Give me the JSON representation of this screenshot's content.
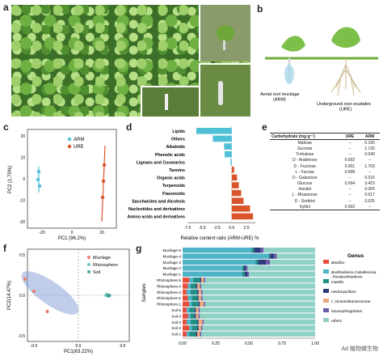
{
  "panels": {
    "a": "a",
    "b": "b",
    "c": "c",
    "d": "d",
    "e": "e",
    "f": "f",
    "g": "g"
  },
  "b_labels": {
    "arm": "Aerial root mucilage\n(ARM)",
    "ure": "Underground root exudates\n(URE)"
  },
  "c": {
    "legend": [
      {
        "name": "ARM",
        "color": "#4fc0d6"
      },
      {
        "name": "URE",
        "color": "#d9532b"
      }
    ],
    "xlabel": "PC1 (96.2%)",
    "ylabel": "PC2 (1.70%)",
    "xticks": [
      "-20",
      "0",
      "20"
    ],
    "yticks": [
      "20",
      "10",
      "0",
      "-10",
      "-20"
    ]
  },
  "chart_data": [
    {
      "type": "bar",
      "title": "",
      "categories": [
        "Lipids",
        "Others",
        "Alkaloids",
        "Phenolic acids",
        "Lignans and Coumarins",
        "Tannins",
        "Organic acids",
        "Terpenoids",
        "Flavonoids",
        "Saccharides and Alcohols",
        "Nucleotides and derivatives",
        "Amino acids and derivatives"
      ],
      "values": [
        -6.0,
        -3.2,
        -1.3,
        -1.2,
        -0.2,
        0.4,
        0.9,
        1.2,
        1.6,
        2.0,
        3.1,
        3.6
      ],
      "xlabel": "Relative content ratio (ARM-URE) %",
      "xticks": [
        "-7.5",
        "-5.0",
        "-2.5",
        "0.0",
        "2.5"
      ],
      "xlim": [
        -7.5,
        4.0
      ],
      "colors": {
        "negative": "#4fc0d6",
        "positive": "#d9532b"
      }
    },
    {
      "type": "table",
      "title": "",
      "headers": [
        "Carbohydrate (mg·g⁻¹)",
        "URE",
        "ARM"
      ],
      "rows": [
        [
          "Maltose",
          "--",
          "0.155"
        ],
        [
          "Sucrose",
          "--",
          "1.135"
        ],
        [
          "Trehalose",
          "--",
          "0.040"
        ],
        [
          "D - Arabinose",
          "0.002",
          "--"
        ],
        [
          "D - Fructose",
          "0.001",
          "1.763"
        ],
        [
          "L - Fucose",
          "0.008",
          "--"
        ],
        [
          "D - Galactose",
          "--",
          "0.016"
        ],
        [
          "Glucose",
          "0.004",
          "3.423"
        ],
        [
          "Inositol",
          "--",
          "0.055"
        ],
        [
          "L - Rhamnose",
          "--",
          "0.017"
        ],
        [
          "D - Sorbitol",
          "--",
          "0.025"
        ],
        [
          "Xylitol",
          "0.002",
          "--"
        ]
      ]
    },
    {
      "type": "scatter",
      "title": "",
      "series": [
        {
          "name": "Mucilage",
          "color": "#f07a6a",
          "x": [
            -0.6,
            -0.5,
            -0.35
          ],
          "y": [
            0.2,
            0.05,
            -0.2
          ]
        },
        {
          "name": "Rhizosphere",
          "color": "#77c6c7",
          "x": [
            0.31,
            0.32,
            0.33
          ],
          "y": [
            0.0,
            0.01,
            0.0
          ]
        },
        {
          "name": "Soil",
          "color": "#4aa39a",
          "x": [
            0.33,
            0.34,
            0.35
          ],
          "y": [
            0.0,
            -0.01,
            0.0
          ]
        }
      ],
      "xlabel": "PC1(63.22%)",
      "ylabel": "PC2(14.47%)",
      "xticks": [
        "-0.5",
        "0.0",
        "0.5"
      ],
      "yticks": [
        "0.5",
        "0.0",
        "-0.5"
      ]
    },
    {
      "type": "bar",
      "title": "",
      "categories": [
        "Mucilage-5",
        "Mucilage-4",
        "Mucilage-3",
        "Mucilage-2",
        "Mucilage-1",
        "Rhizosphere-5",
        "Rhizosphere-4",
        "Rhizosphere-3",
        "Rhizosphere-2",
        "Rhizosphere-1",
        "Soil-5",
        "Soil-4",
        "Soil-3",
        "Soil-2",
        "Soil-1"
      ],
      "legend_title": "Genus",
      "series": [
        {
          "name": "Bacillus",
          "color": "#e84d3c",
          "values": [
            0.0,
            0.0,
            0.0,
            0.0,
            0.0,
            0.05,
            0.04,
            0.03,
            0.04,
            0.05,
            0.03,
            0.04,
            0.03,
            0.05,
            0.03
          ]
        },
        {
          "name": "Burkholderia-Caballeronia\n-Paraburkholderia",
          "color": "#4fb3c8",
          "values": [
            0.52,
            0.65,
            0.55,
            0.45,
            0.45,
            0.03,
            0.02,
            0.03,
            0.03,
            0.02,
            0.02,
            0.02,
            0.03,
            0.02,
            0.02
          ]
        },
        {
          "name": "Gaiella",
          "color": "#1f8f86",
          "values": [
            0.02,
            0.01,
            0.02,
            0.01,
            0.02,
            0.05,
            0.04,
            0.05,
            0.04,
            0.05,
            0.04,
            0.03,
            0.05,
            0.04,
            0.05
          ]
        },
        {
          "name": "Herbaspirillum",
          "color": "#2a3a7a",
          "values": [
            0.05,
            0.03,
            0.06,
            0.02,
            0.02,
            0.01,
            0.01,
            0.01,
            0.01,
            0.01,
            0.01,
            0.01,
            0.01,
            0.01,
            0.01
          ]
        },
        {
          "name": "f_Vicinamibacteraceae",
          "color": "#e8a87c",
          "values": [
            0.0,
            0.0,
            0.0,
            0.0,
            0.0,
            0.02,
            0.02,
            0.02,
            0.02,
            0.03,
            0.02,
            0.02,
            0.03,
            0.02,
            0.02
          ]
        },
        {
          "name": "Novosphingobium",
          "color": "#6e5aa8",
          "values": [
            0.02,
            0.02,
            0.03,
            0.01,
            0.01,
            0.01,
            0.01,
            0.01,
            0.01,
            0.01,
            0.01,
            0.01,
            0.01,
            0.01,
            0.01
          ]
        },
        {
          "name": "others",
          "color": "#8fd1c4",
          "values": [
            0.39,
            0.29,
            0.34,
            0.51,
            0.5,
            0.83,
            0.86,
            0.85,
            0.85,
            0.83,
            0.87,
            0.87,
            0.84,
            0.85,
            0.86
          ]
        }
      ],
      "xlabel": "",
      "ylabel": "Samples",
      "xticks": [
        "0.00",
        "0.25",
        "0.50",
        "0.75",
        "1.00"
      ],
      "xlim": [
        0,
        1
      ]
    }
  ],
  "watermark": "Ad 植物微生物"
}
